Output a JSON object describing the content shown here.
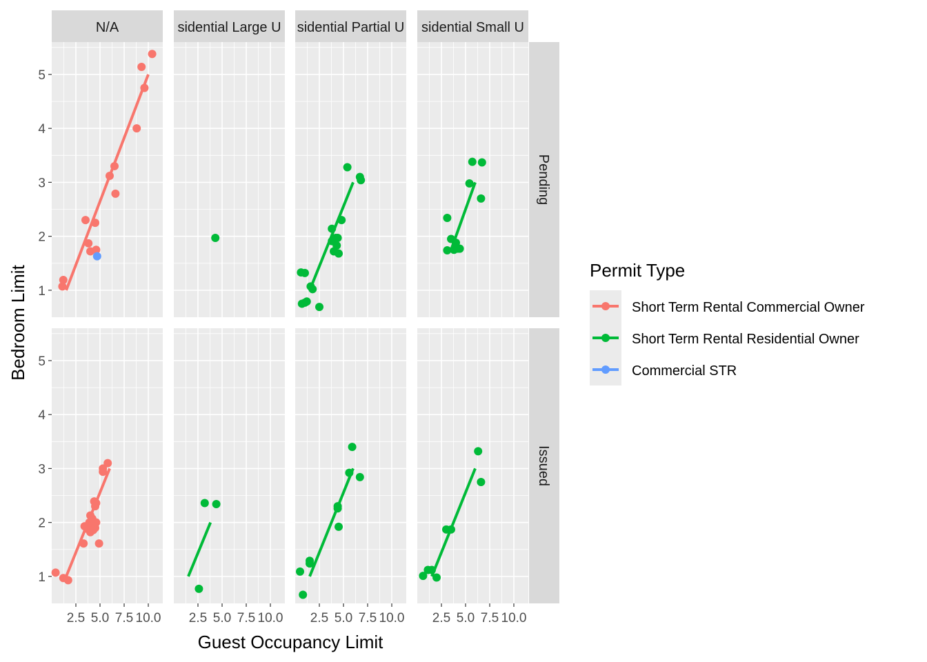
{
  "chart_data": {
    "type": "scatter",
    "facet_columns": [
      "N/A",
      "Residential Large Unit",
      "Residential Partial Unit",
      "Residential Small Unit"
    ],
    "facet_column_labels": [
      "N/A",
      "sidential Large U",
      "sidential Partial U",
      "sidential Small U"
    ],
    "facet_rows": [
      "Pending",
      "Issued"
    ],
    "xlabel": "Guest Occupancy Limit",
    "ylabel": "Bedroom Limit",
    "xlim": [
      0,
      11.5
    ],
    "ylim": [
      0.5,
      5.6
    ],
    "x_ticks": [
      2.5,
      5.0,
      7.5,
      10.0
    ],
    "x_tick_labels": [
      "2.5",
      "5.0",
      "7.5",
      "10.0"
    ],
    "y_ticks": [
      1,
      2,
      3,
      4,
      5
    ],
    "y_tick_labels": [
      "1",
      "2",
      "3",
      "4",
      "5"
    ],
    "grid": true,
    "legend_position": "right",
    "legend_title": "Permit Type",
    "series": [
      {
        "name": "Short Term Rental Commercial Owner",
        "color": "#F8766D"
      },
      {
        "name": "Short Term Rental Residential Owner",
        "color": "#00BA38"
      },
      {
        "name": "Commercial STR",
        "color": "#619CFF"
      }
    ],
    "panels": [
      {
        "row": 0,
        "col": 0,
        "points": [
          {
            "s": 0,
            "x": 1.1,
            "y": 1.07
          },
          {
            "s": 0,
            "x": 1.2,
            "y": 1.19
          },
          {
            "s": 0,
            "x": 3.5,
            "y": 2.3
          },
          {
            "s": 0,
            "x": 3.8,
            "y": 1.87
          },
          {
            "s": 0,
            "x": 4.0,
            "y": 1.72
          },
          {
            "s": 0,
            "x": 4.5,
            "y": 2.25
          },
          {
            "s": 0,
            "x": 4.6,
            "y": 1.75
          },
          {
            "s": 0,
            "x": 6.0,
            "y": 3.12
          },
          {
            "s": 0,
            "x": 6.5,
            "y": 3.3
          },
          {
            "s": 0,
            "x": 6.6,
            "y": 2.79
          },
          {
            "s": 0,
            "x": 8.8,
            "y": 4.0
          },
          {
            "s": 0,
            "x": 9.3,
            "y": 5.14
          },
          {
            "s": 0,
            "x": 9.6,
            "y": 4.75
          },
          {
            "s": 0,
            "x": 10.4,
            "y": 5.38
          },
          {
            "s": 2,
            "x": 4.7,
            "y": 1.63
          }
        ],
        "lines": [
          {
            "s": 0,
            "x1": 1.5,
            "y1": 1.0,
            "x2": 10.0,
            "y2": 5.0
          }
        ]
      },
      {
        "row": 0,
        "col": 1,
        "points": [
          {
            "s": 1,
            "x": 4.3,
            "y": 1.97
          }
        ],
        "lines": []
      },
      {
        "row": 0,
        "col": 2,
        "points": [
          {
            "s": 1,
            "x": 0.6,
            "y": 1.33
          },
          {
            "s": 1,
            "x": 1.0,
            "y": 1.32
          },
          {
            "s": 1,
            "x": 0.7,
            "y": 0.75
          },
          {
            "s": 1,
            "x": 1.0,
            "y": 0.77
          },
          {
            "s": 1,
            "x": 1.2,
            "y": 0.79
          },
          {
            "s": 1,
            "x": 1.6,
            "y": 1.07
          },
          {
            "s": 1,
            "x": 1.8,
            "y": 1.02
          },
          {
            "s": 1,
            "x": 2.5,
            "y": 0.69
          },
          {
            "s": 1,
            "x": 3.8,
            "y": 2.14
          },
          {
            "s": 1,
            "x": 3.8,
            "y": 1.91
          },
          {
            "s": 1,
            "x": 4.0,
            "y": 1.72
          },
          {
            "s": 1,
            "x": 4.2,
            "y": 1.97
          },
          {
            "s": 1,
            "x": 4.3,
            "y": 1.83
          },
          {
            "s": 1,
            "x": 4.4,
            "y": 1.97
          },
          {
            "s": 1,
            "x": 4.5,
            "y": 1.68
          },
          {
            "s": 1,
            "x": 4.8,
            "y": 2.3
          },
          {
            "s": 1,
            "x": 5.4,
            "y": 3.28
          },
          {
            "s": 1,
            "x": 6.7,
            "y": 3.1
          },
          {
            "s": 1,
            "x": 6.8,
            "y": 3.04
          }
        ],
        "lines": [
          {
            "s": 1,
            "x1": 1.5,
            "y1": 1.0,
            "x2": 6.0,
            "y2": 3.0
          }
        ]
      },
      {
        "row": 0,
        "col": 3,
        "points": [
          {
            "s": 1,
            "x": 3.1,
            "y": 2.34
          },
          {
            "s": 1,
            "x": 3.1,
            "y": 1.74
          },
          {
            "s": 1,
            "x": 3.5,
            "y": 1.95
          },
          {
            "s": 1,
            "x": 3.8,
            "y": 1.75
          },
          {
            "s": 1,
            "x": 4.0,
            "y": 1.88
          },
          {
            "s": 1,
            "x": 4.2,
            "y": 1.77
          },
          {
            "s": 1,
            "x": 4.4,
            "y": 1.77
          },
          {
            "s": 1,
            "x": 5.4,
            "y": 2.98
          },
          {
            "s": 1,
            "x": 5.7,
            "y": 3.38
          },
          {
            "s": 1,
            "x": 6.6,
            "y": 2.7
          },
          {
            "s": 1,
            "x": 6.7,
            "y": 3.37
          }
        ],
        "lines": [
          {
            "s": 1,
            "x1": 3.5,
            "y1": 1.75,
            "x2": 6.0,
            "y2": 3.0
          }
        ]
      },
      {
        "row": 1,
        "col": 0,
        "points": [
          {
            "s": 0,
            "x": 0.4,
            "y": 1.07
          },
          {
            "s": 0,
            "x": 1.2,
            "y": 0.97
          },
          {
            "s": 0,
            "x": 1.7,
            "y": 0.93
          },
          {
            "s": 0,
            "x": 3.3,
            "y": 1.61
          },
          {
            "s": 0,
            "x": 3.4,
            "y": 1.93
          },
          {
            "s": 0,
            "x": 3.7,
            "y": 1.88
          },
          {
            "s": 0,
            "x": 3.9,
            "y": 2.0
          },
          {
            "s": 0,
            "x": 4.0,
            "y": 1.82
          },
          {
            "s": 0,
            "x": 4.0,
            "y": 2.13
          },
          {
            "s": 0,
            "x": 4.1,
            "y": 1.94
          },
          {
            "s": 0,
            "x": 4.2,
            "y": 2.07
          },
          {
            "s": 0,
            "x": 4.3,
            "y": 1.86
          },
          {
            "s": 0,
            "x": 4.4,
            "y": 2.39
          },
          {
            "s": 0,
            "x": 4.5,
            "y": 1.9
          },
          {
            "s": 0,
            "x": 4.5,
            "y": 2.3
          },
          {
            "s": 0,
            "x": 4.6,
            "y": 2.36
          },
          {
            "s": 0,
            "x": 4.6,
            "y": 2.0
          },
          {
            "s": 0,
            "x": 4.9,
            "y": 1.61
          },
          {
            "s": 0,
            "x": 5.3,
            "y": 2.94
          },
          {
            "s": 0,
            "x": 5.3,
            "y": 3.0
          },
          {
            "s": 0,
            "x": 5.8,
            "y": 3.1
          }
        ],
        "lines": [
          {
            "s": 0,
            "x1": 1.5,
            "y1": 1.0,
            "x2": 6.0,
            "y2": 3.0
          }
        ]
      },
      {
        "row": 1,
        "col": 1,
        "points": [
          {
            "s": 1,
            "x": 2.6,
            "y": 0.77
          },
          {
            "s": 1,
            "x": 3.2,
            "y": 2.36
          },
          {
            "s": 1,
            "x": 4.4,
            "y": 2.34
          }
        ],
        "lines": [
          {
            "s": 1,
            "x1": 1.5,
            "y1": 1.0,
            "x2": 3.8,
            "y2": 2.0
          }
        ]
      },
      {
        "row": 1,
        "col": 2,
        "points": [
          {
            "s": 1,
            "x": 0.5,
            "y": 1.09
          },
          {
            "s": 1,
            "x": 0.8,
            "y": 0.66
          },
          {
            "s": 1,
            "x": 1.5,
            "y": 1.24
          },
          {
            "s": 1,
            "x": 1.5,
            "y": 1.29
          },
          {
            "s": 1,
            "x": 4.4,
            "y": 2.26
          },
          {
            "s": 1,
            "x": 4.4,
            "y": 2.3
          },
          {
            "s": 1,
            "x": 4.5,
            "y": 1.92
          },
          {
            "s": 1,
            "x": 5.6,
            "y": 2.92
          },
          {
            "s": 1,
            "x": 5.9,
            "y": 3.4
          },
          {
            "s": 1,
            "x": 6.7,
            "y": 2.84
          }
        ],
        "lines": [
          {
            "s": 1,
            "x1": 1.5,
            "y1": 1.0,
            "x2": 6.0,
            "y2": 3.0
          }
        ]
      },
      {
        "row": 1,
        "col": 3,
        "points": [
          {
            "s": 1,
            "x": 0.6,
            "y": 1.01
          },
          {
            "s": 1,
            "x": 1.1,
            "y": 1.12
          },
          {
            "s": 1,
            "x": 1.5,
            "y": 1.12
          },
          {
            "s": 1,
            "x": 2.0,
            "y": 0.98
          },
          {
            "s": 1,
            "x": 3.0,
            "y": 1.87
          },
          {
            "s": 1,
            "x": 3.5,
            "y": 1.87
          },
          {
            "s": 1,
            "x": 6.3,
            "y": 3.32
          },
          {
            "s": 1,
            "x": 6.6,
            "y": 2.75
          }
        ],
        "lines": [
          {
            "s": 1,
            "x1": 1.5,
            "y1": 1.0,
            "x2": 6.0,
            "y2": 3.0
          }
        ]
      }
    ]
  }
}
